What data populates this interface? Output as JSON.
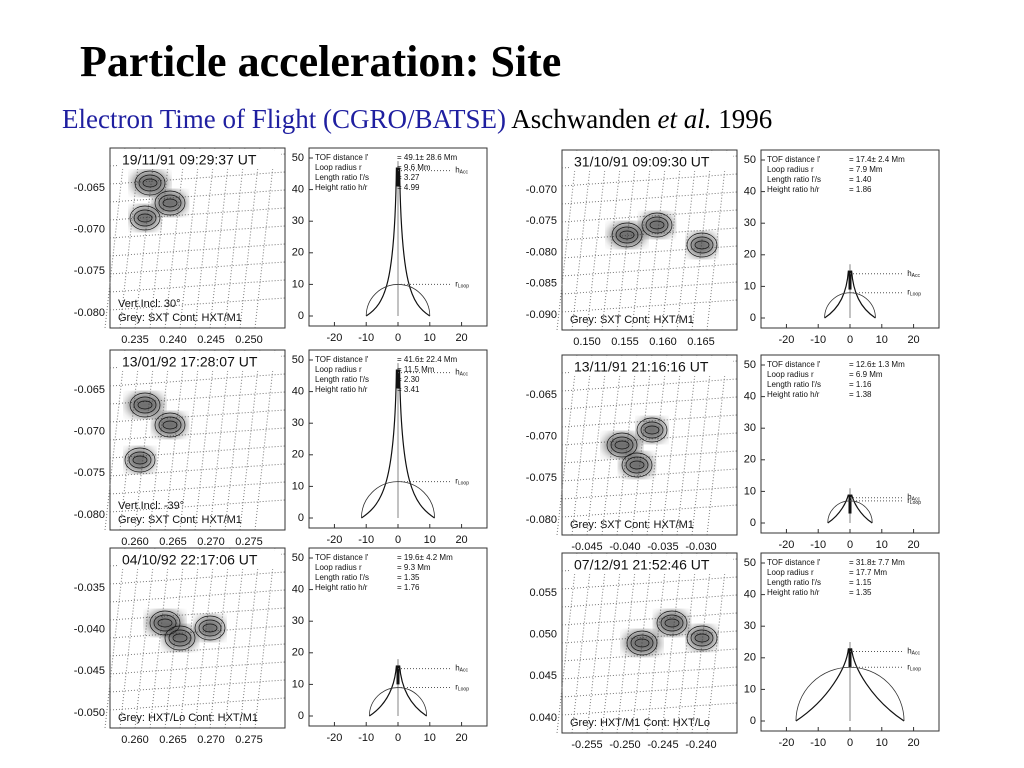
{
  "title": "Particle acceleration: Site",
  "subtitle": {
    "main": "Electron Time of Flight (CGRO/BATSE)",
    "author": "Aschwanden",
    "etal": "et al.",
    "year": "1996"
  },
  "param_labels": [
    "TOF distance l'",
    "Loop radius r",
    "Length ratio l'/s",
    "Height ratio h/r"
  ],
  "tof_yticks": [
    0,
    10,
    20,
    30,
    40,
    50
  ],
  "tof_xticks": [
    -20,
    -10,
    0,
    10,
    20
  ],
  "h_label": {
    "main": "h",
    "sub": "Acc"
  },
  "r_label": {
    "main": "r",
    "sub": "Loop"
  },
  "panels": [
    {
      "time": "19/11/91  09:29:37 UT",
      "yticks": [
        "-0.065",
        "-0.070",
        "-0.075",
        "-0.080"
      ],
      "xticks": [
        "0.235",
        "0.240",
        "0.245",
        "0.250"
      ],
      "notes": [
        "Vert.Incl: 30°",
        "Grey: SXT  Cont: HXT/M1"
      ],
      "params": [
        "= 49.1± 28.6 Mm",
        "= 9.6 Mm",
        "= 3.27",
        "= 4.99"
      ]
    },
    {
      "time": "13/01/92  17:28:07 UT",
      "yticks": [
        "-0.065",
        "-0.070",
        "-0.075",
        "-0.080"
      ],
      "xticks": [
        "0.260",
        "0.265",
        "0.270",
        "0.275"
      ],
      "notes": [
        "Vert.Incl: -39°",
        "Grey: SXT  Cont: HXT/M1"
      ],
      "params": [
        "= 41.6± 22.4 Mm",
        "= 11.5 Mm",
        "= 2.30",
        "= 3.41"
      ]
    },
    {
      "time": "04/10/92  22:17:06 UT",
      "yticks": [
        "-0.035",
        "-0.040",
        "-0.045",
        "-0.050"
      ],
      "xticks": [
        "0.260",
        "0.265",
        "0.270",
        "0.275"
      ],
      "notes": [
        "Grey: HXT/Lo  Cont: HXT/M1"
      ],
      "params": [
        "= 19.6± 4.2 Mm",
        "= 9.3 Mm",
        "= 1.35",
        "= 1.76"
      ]
    },
    {
      "time": "31/10/91  09:09:30 UT",
      "yticks": [
        "-0.070",
        "-0.075",
        "-0.080",
        "-0.085",
        "-0.090"
      ],
      "xticks": [
        "0.150",
        "0.155",
        "0.160",
        "0.165"
      ],
      "notes": [
        "Grey: SXT  Cont: HXT/M1"
      ],
      "params": [
        "= 17.4± 2.4 Mm",
        "= 7.9 Mm",
        "= 1.40",
        "= 1.86"
      ]
    },
    {
      "time": "13/11/91  21:16:16 UT",
      "yticks": [
        "-0.065",
        "-0.070",
        "-0.075",
        "-0.080"
      ],
      "xticks": [
        "-0.045",
        "-0.040",
        "-0.035",
        "-0.030"
      ],
      "notes": [
        "Grey: SXT  Cont: HXT/M1"
      ],
      "params": [
        "= 12.6± 1.3 Mm",
        "= 6.9 Mm",
        "= 1.16",
        "= 1.38"
      ]
    },
    {
      "time": "07/12/91  21:52:46 UT",
      "yticks": [
        "0.055",
        "0.050",
        "0.045",
        "0.040"
      ],
      "xticks": [
        "-0.255",
        "-0.250",
        "-0.245",
        "-0.240"
      ],
      "notes": [
        "Grey: HXT/M1  Cont: HXT/Lo"
      ],
      "params": [
        "= 31.8± 7.7 Mm",
        "= 17.7 Mm",
        "= 1.15",
        "= 1.35"
      ]
    }
  ]
}
